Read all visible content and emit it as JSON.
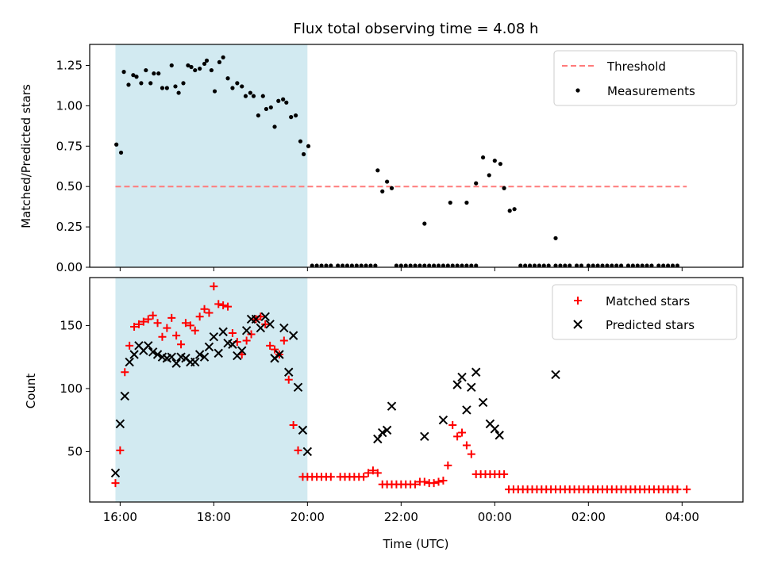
{
  "chart_data": [
    {
      "type": "scatter",
      "title": "Flux total observing time = 4.08 h",
      "xlabel": "",
      "ylabel": "Matched/Predicted stars",
      "xlim": [
        -0.65,
        13.3
      ],
      "ylim": [
        0,
        1.38
      ],
      "yticks": [
        0.0,
        0.25,
        0.5,
        0.75,
        1.0,
        1.25
      ],
      "ytick_labels": [
        "0.00",
        "0.25",
        "0.50",
        "0.75",
        "1.00",
        "1.25"
      ],
      "xticks": [
        0,
        2,
        4,
        6,
        8,
        10,
        12
      ],
      "span": {
        "x0": -0.1,
        "x1": 4.0,
        "color": "#add8e6"
      },
      "legend": {
        "placement": "top-right",
        "entries": [
          "Threshold",
          "Measurements"
        ]
      },
      "series": [
        {
          "name": "Threshold",
          "kind": "line",
          "color": "#ff7b7b",
          "x": [
            -0.1,
            12.1
          ],
          "y": [
            0.5,
            0.5
          ]
        },
        {
          "name": "Measurements",
          "kind": "scatter",
          "color": "#000000",
          "x": [
            -0.08,
            0.02,
            0.08,
            0.18,
            0.28,
            0.35,
            0.45,
            0.55,
            0.65,
            0.72,
            0.82,
            0.9,
            1.0,
            1.1,
            1.18,
            1.25,
            1.35,
            1.45,
            1.52,
            1.6,
            1.7,
            1.8,
            1.85,
            1.95,
            2.02,
            2.12,
            2.2,
            2.3,
            2.4,
            2.5,
            2.6,
            2.68,
            2.78,
            2.85,
            2.95,
            3.05,
            3.12,
            3.22,
            3.3,
            3.38,
            3.48,
            3.55,
            3.65,
            3.75,
            3.85,
            3.92,
            4.02,
            5.5,
            5.6,
            5.7,
            5.8,
            6.5,
            7.05,
            7.4,
            7.6,
            7.75,
            7.88,
            8.0,
            8.12,
            8.2,
            8.32,
            8.42,
            9.3
          ],
          "y": [
            0.76,
            0.71,
            1.21,
            1.13,
            1.19,
            1.18,
            1.14,
            1.22,
            1.14,
            1.2,
            1.2,
            1.11,
            1.11,
            1.25,
            1.12,
            1.08,
            1.14,
            1.25,
            1.24,
            1.22,
            1.23,
            1.26,
            1.28,
            1.22,
            1.09,
            1.27,
            1.3,
            1.17,
            1.11,
            1.14,
            1.12,
            1.06,
            1.08,
            1.06,
            0.94,
            1.06,
            0.98,
            0.99,
            0.87,
            1.03,
            1.04,
            1.02,
            0.93,
            0.94,
            0.78,
            0.7,
            0.75,
            0.6,
            0.47,
            0.53,
            0.49,
            0.27,
            0.4,
            0.4,
            0.52,
            0.68,
            0.57,
            0.66,
            0.64,
            0.49,
            0.35,
            0.36,
            0.18
          ]
        },
        {
          "name": "Measurements (zero)",
          "kind": "scatter",
          "color": "#000000",
          "x": [
            4.1,
            4.2,
            4.3,
            4.4,
            4.5,
            4.65,
            4.75,
            4.85,
            4.95,
            5.05,
            5.15,
            5.25,
            5.35,
            5.45,
            5.9,
            6.0,
            6.1,
            6.2,
            6.3,
            6.4,
            6.5,
            6.6,
            6.7,
            6.8,
            6.9,
            7.0,
            7.1,
            7.2,
            7.3,
            7.4,
            7.5,
            7.6,
            8.55,
            8.65,
            8.75,
            8.85,
            8.95,
            9.05,
            9.15,
            9.3,
            9.4,
            9.5,
            9.6,
            9.75,
            9.85,
            10.0,
            10.1,
            10.2,
            10.3,
            10.4,
            10.5,
            10.6,
            10.7,
            10.85,
            10.95,
            11.05,
            11.15,
            11.25,
            11.35,
            11.5,
            11.6,
            11.7,
            11.8,
            11.9
          ],
          "y": [
            0.01,
            0.01,
            0.01,
            0.01,
            0.01,
            0.01,
            0.01,
            0.01,
            0.01,
            0.01,
            0.01,
            0.01,
            0.01,
            0.01,
            0.01,
            0.01,
            0.01,
            0.01,
            0.01,
            0.01,
            0.01,
            0.01,
            0.01,
            0.01,
            0.01,
            0.01,
            0.01,
            0.01,
            0.01,
            0.01,
            0.01,
            0.01,
            0.01,
            0.01,
            0.01,
            0.01,
            0.01,
            0.01,
            0.01,
            0.01,
            0.01,
            0.01,
            0.01,
            0.01,
            0.01,
            0.01,
            0.01,
            0.01,
            0.01,
            0.01,
            0.01,
            0.01,
            0.01,
            0.01,
            0.01,
            0.01,
            0.01,
            0.01,
            0.01,
            0.01,
            0.01,
            0.01,
            0.01,
            0.01
          ]
        }
      ]
    },
    {
      "type": "scatter",
      "title": "",
      "xlabel": "Time (UTC)",
      "ylabel": "Count",
      "xlim": [
        -0.65,
        13.3
      ],
      "ylim": [
        10,
        188
      ],
      "yticks": [
        50,
        100,
        150
      ],
      "ytick_labels": [
        "50",
        "100",
        "150"
      ],
      "xticks": [
        0,
        2,
        4,
        6,
        8,
        10,
        12
      ],
      "xtick_labels": [
        "16:00",
        "18:00",
        "20:00",
        "22:00",
        "00:00",
        "02:00",
        "04:00"
      ],
      "span": {
        "x0": -0.1,
        "x1": 4.0,
        "color": "#add8e6"
      },
      "legend": {
        "placement": "top-right",
        "entries": [
          "Matched stars",
          "Predicted stars"
        ]
      },
      "series": [
        {
          "name": "Matched stars",
          "kind": "plus",
          "color": "#ff0000",
          "x": [
            -0.1,
            0.0,
            0.1,
            0.2,
            0.3,
            0.4,
            0.5,
            0.6,
            0.7,
            0.8,
            0.9,
            1.0,
            1.1,
            1.2,
            1.3,
            1.4,
            1.5,
            1.6,
            1.7,
            1.8,
            1.9,
            2.0,
            2.1,
            2.2,
            2.3,
            2.4,
            2.5,
            2.6,
            2.7,
            2.8,
            2.9,
            3.0,
            3.1,
            3.2,
            3.3,
            3.4,
            3.5,
            3.6,
            3.7,
            3.8,
            3.9,
            4.0,
            4.1,
            4.2,
            4.3,
            4.4,
            4.5,
            4.7,
            4.8,
            4.9,
            5.0,
            5.1,
            5.2,
            5.3,
            5.4,
            5.5,
            5.6,
            5.7,
            5.8,
            5.9,
            6.0,
            6.1,
            6.2,
            6.3,
            6.4,
            6.5,
            6.6,
            6.7,
            6.8,
            6.9,
            7.0,
            7.1,
            7.2,
            7.3,
            7.4,
            7.5,
            7.6,
            7.7,
            7.8,
            7.9,
            8.0,
            8.1,
            8.2,
            8.3,
            8.4,
            8.5,
            8.6,
            8.7,
            8.8,
            8.9,
            9.0,
            9.1,
            9.2,
            9.3,
            9.4,
            9.5,
            9.6,
            9.7,
            9.8,
            9.9,
            10.0,
            10.1,
            10.2,
            10.3,
            10.4,
            10.5,
            10.6,
            10.7,
            10.8,
            10.9,
            11.0,
            11.1,
            11.2,
            11.3,
            11.4,
            11.5,
            11.6,
            11.7,
            11.8,
            11.9,
            12.1
          ],
          "y": [
            25,
            51,
            113,
            134,
            149,
            151,
            153,
            155,
            158,
            152,
            141,
            148,
            156,
            142,
            135,
            152,
            150,
            146,
            157,
            163,
            160,
            181,
            167,
            166,
            165,
            144,
            137,
            127,
            138,
            143,
            155,
            157,
            151,
            134,
            131,
            127,
            138,
            107,
            71,
            51,
            30,
            30,
            30,
            30,
            30,
            30,
            30,
            30,
            30,
            30,
            30,
            30,
            30,
            33,
            35,
            33,
            24,
            24,
            24,
            24,
            24,
            24,
            24,
            24,
            26,
            26,
            25,
            25,
            26,
            27,
            39,
            71,
            62,
            65,
            55,
            48,
            32,
            32,
            32,
            32,
            32,
            32,
            32,
            20,
            20,
            20,
            20,
            20,
            20,
            20,
            20,
            20,
            20,
            20,
            20,
            20,
            20,
            20,
            20,
            20,
            20,
            20,
            20,
            20,
            20,
            20,
            20,
            20,
            20,
            20,
            20,
            20,
            20,
            20,
            20,
            20,
            20,
            20,
            20,
            20,
            20
          ]
        },
        {
          "name": "Predicted stars",
          "kind": "cross",
          "color": "#000000",
          "x": [
            -0.1,
            0.0,
            0.1,
            0.2,
            0.3,
            0.4,
            0.5,
            0.6,
            0.7,
            0.8,
            0.9,
            1.0,
            1.1,
            1.2,
            1.3,
            1.4,
            1.5,
            1.6,
            1.7,
            1.8,
            1.9,
            2.0,
            2.1,
            2.2,
            2.3,
            2.4,
            2.5,
            2.6,
            2.7,
            2.8,
            2.9,
            3.0,
            3.1,
            3.2,
            3.3,
            3.4,
            3.5,
            3.6,
            3.7,
            3.8,
            3.9,
            4.0,
            5.5,
            5.6,
            5.7,
            5.8,
            6.5,
            6.9,
            7.2,
            7.3,
            7.4,
            7.5,
            7.6,
            7.75,
            7.9,
            8.0,
            8.1,
            9.3
          ],
          "y": [
            33,
            72,
            94,
            121,
            127,
            134,
            130,
            134,
            129,
            127,
            125,
            124,
            125,
            120,
            125,
            124,
            121,
            121,
            127,
            125,
            133,
            141,
            128,
            145,
            136,
            135,
            126,
            130,
            146,
            155,
            155,
            148,
            157,
            151,
            124,
            127,
            148,
            113,
            142,
            101,
            67,
            50,
            60,
            65,
            67,
            86,
            62,
            75,
            103,
            109,
            83,
            101,
            113,
            89,
            72,
            68,
            63,
            111
          ]
        }
      ]
    }
  ]
}
